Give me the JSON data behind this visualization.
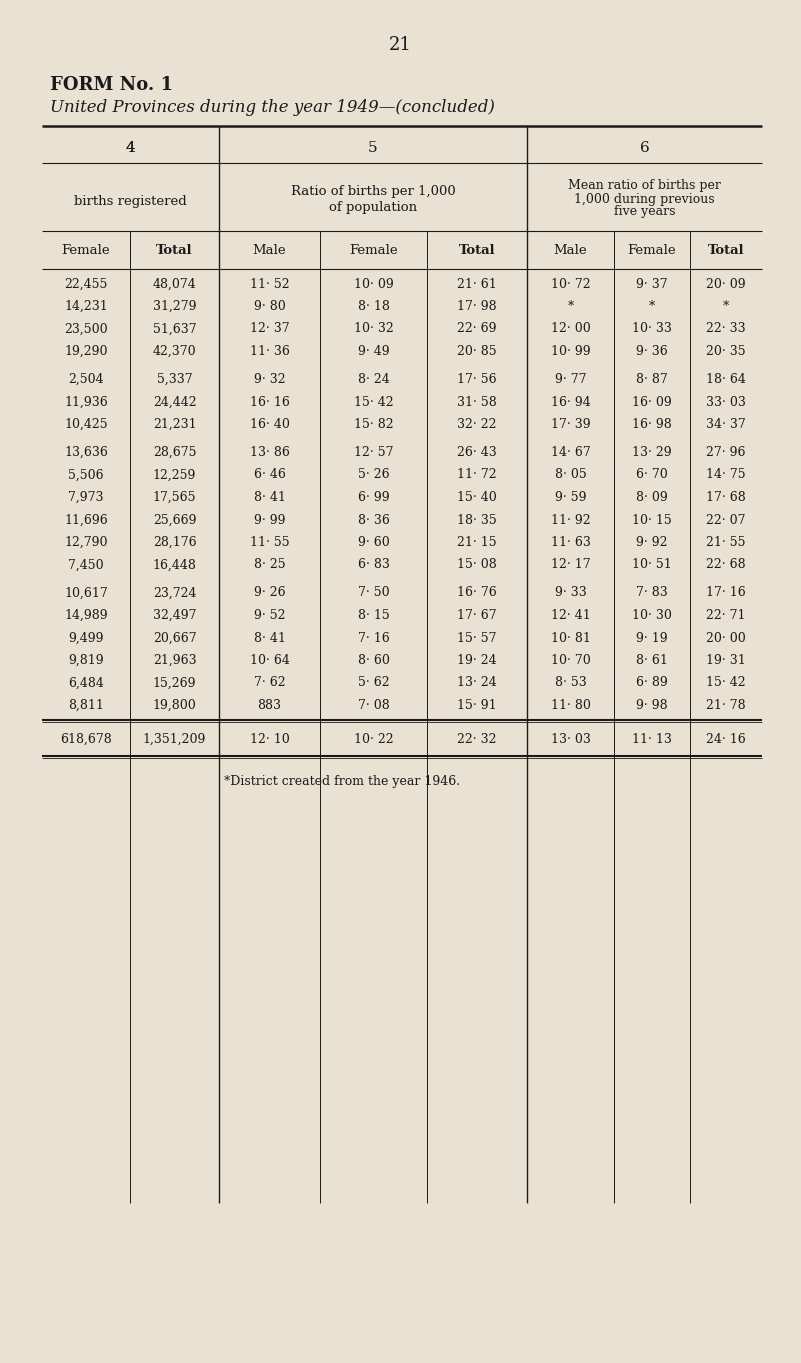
{
  "page_number": "21",
  "title_line1": "FORM No. 1",
  "title_line2": "United Provinces during the year 1949—(concluded)",
  "col_headers": [
    "Female",
    "Total",
    "Male",
    "Female",
    "Total",
    "Male",
    "Female",
    "Total"
  ],
  "row_groups": [
    {
      "rows": [
        [
          "22,455",
          "48,074",
          "11· 52",
          "10· 09",
          "21· 61",
          "10· 72",
          "9· 37",
          "20· 09"
        ],
        [
          "14,231",
          "31,279",
          "9· 80",
          "8· 18",
          "17· 98",
          "*",
          "*",
          "*"
        ],
        [
          "23,500",
          "51,637",
          "12· 37",
          "10· 32",
          "22· 69",
          "12· 00",
          "10· 33",
          "22· 33"
        ],
        [
          "19,290",
          "42,370",
          "11· 36",
          "9· 49",
          "20· 85",
          "10· 99",
          "9· 36",
          "20· 35"
        ]
      ]
    },
    {
      "rows": [
        [
          "2,504",
          "5,337",
          "9· 32",
          "8· 24",
          "17· 56",
          "9· 77",
          "8· 87",
          "18· 64"
        ],
        [
          "11,936",
          "24,442",
          "16· 16",
          "15· 42",
          "31· 58",
          "16· 94",
          "16· 09",
          "33· 03"
        ],
        [
          "10,425",
          "21,231",
          "16· 40",
          "15· 82",
          "32· 22",
          "17· 39",
          "16· 98",
          "34· 37"
        ]
      ]
    },
    {
      "rows": [
        [
          "13,636",
          "28,675",
          "13· 86",
          "12· 57",
          "26· 43",
          "14· 67",
          "13· 29",
          "27· 96"
        ],
        [
          "5,506",
          "12,259",
          "6· 46",
          "5· 26",
          "11· 72",
          "8· 05",
          "6· 70",
          "14· 75"
        ],
        [
          "7,973",
          "17,565",
          "8· 41",
          "6· 99",
          "15· 40",
          "9· 59",
          "8· 09",
          "17· 68"
        ],
        [
          "11,696",
          "25,669",
          "9· 99",
          "8· 36",
          "18· 35",
          "11· 92",
          "10· 15",
          "22· 07"
        ],
        [
          "12,790",
          "28,176",
          "11· 55",
          "9· 60",
          "21· 15",
          "11· 63",
          "9· 92",
          "21· 55"
        ],
        [
          "7,450",
          "16,448",
          "8· 25",
          "6· 83",
          "15· 08",
          "12· 17",
          "10· 51",
          "22· 68"
        ]
      ]
    },
    {
      "rows": [
        [
          "10,617",
          "23,724",
          "9· 26",
          "7· 50",
          "16· 76",
          "9· 33",
          "7· 83",
          "17· 16"
        ],
        [
          "14,989",
          "32,497",
          "9· 52",
          "8· 15",
          "17· 67",
          "12· 41",
          "10· 30",
          "22· 71"
        ],
        [
          "9,499",
          "20,667",
          "8· 41",
          "7· 16",
          "15· 57",
          "10· 81",
          "9· 19",
          "20· 00"
        ],
        [
          "9,819",
          "21,963",
          "10· 64",
          "8· 60",
          "19· 24",
          "10· 70",
          "8· 61",
          "19· 31"
        ],
        [
          "6,484",
          "15,269",
          "7· 62",
          "5· 62",
          "13· 24",
          "8· 53",
          "6· 89",
          "15· 42"
        ],
        [
          "8,811",
          "19,800",
          "883",
          "7· 08",
          "15· 91",
          "11· 80",
          "9· 98",
          "21· 78"
        ]
      ]
    }
  ],
  "total_row": [
    "618,678",
    "1,351,209",
    "12· 10",
    "10· 22",
    "22· 32",
    "13· 03",
    "11· 13",
    "24· 16"
  ],
  "footnote": "*District created from the year 1946.",
  "bg_color": "#e9e1d2",
  "text_color": "#1a1a1a"
}
